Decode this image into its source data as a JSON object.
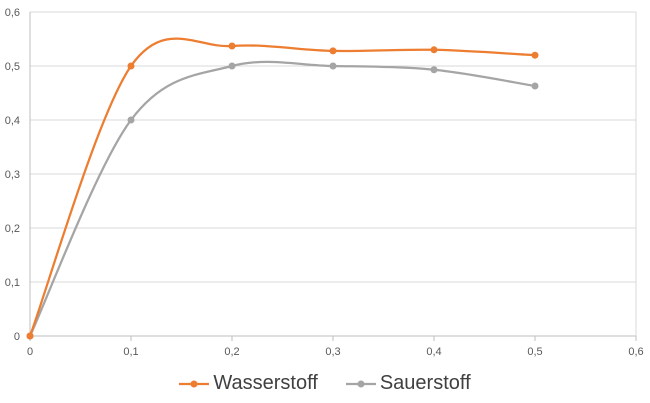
{
  "chart_data": {
    "type": "line",
    "title": "",
    "xlabel": "",
    "ylabel": "",
    "xlim": [
      0,
      0.6
    ],
    "ylim": [
      0,
      0.6
    ],
    "x_ticks": [
      "0",
      "0,1",
      "0,2",
      "0,3",
      "0,4",
      "0,5",
      "0,6"
    ],
    "y_ticks": [
      "0",
      "0,1",
      "0,2",
      "0,3",
      "0,4",
      "0,5",
      "0,6"
    ],
    "grid": "horizontal",
    "legend_position": "bottom",
    "smooth": true,
    "series": [
      {
        "name": "Wasserstoff",
        "color": "#ED7D31",
        "points": [
          [
            0,
            0
          ],
          [
            0.1,
            0.5
          ],
          [
            0.2,
            0.537
          ],
          [
            0.3,
            0.528
          ],
          [
            0.4,
            0.53
          ],
          [
            0.5,
            0.52
          ]
        ]
      },
      {
        "name": "Sauerstoff",
        "color": "#A5A5A5",
        "points": [
          [
            0,
            0
          ],
          [
            0.1,
            0.4
          ],
          [
            0.2,
            0.5
          ],
          [
            0.3,
            0.5
          ],
          [
            0.4,
            0.493
          ],
          [
            0.5,
            0.463
          ]
        ]
      }
    ]
  }
}
